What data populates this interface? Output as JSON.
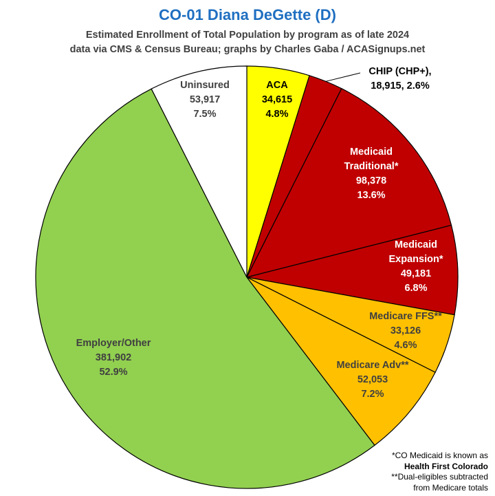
{
  "title": "CO-01 Diana DeGette (D)",
  "subtitle_line1": "Estimated Enrollment of Total Population by program as of late 2024",
  "subtitle_line2": "data via CMS & Census Bureau; graphs by Charles Gaba / ACASignups.net",
  "footnotes": {
    "line1": "*CO Medicaid is known as",
    "line2": "Health First Colorado",
    "line3": "**Dual-eligibles subtracted",
    "line4": "from Medicare totals"
  },
  "chart_data": {
    "type": "pie",
    "title": "CO-01 Diana DeGette (D)",
    "start": "12 o'clock, clockwise",
    "slices": [
      {
        "name": "ACA",
        "lines": [
          "ACA",
          "34,615",
          "4.8%"
        ],
        "value": 34615,
        "percent": 4.8,
        "color": "#ffff00",
        "text_color": "#000000"
      },
      {
        "name": "CHIP (CHP+)",
        "lines": [
          "CHIP (CHP+),",
          "18,915, 2.6%"
        ],
        "value": 18915,
        "percent": 2.6,
        "color": "#c00000",
        "text_color": "#000000",
        "outside_label": true
      },
      {
        "name": "Medicaid Traditional*",
        "lines": [
          "Medicaid",
          "Traditional*",
          "98,378",
          "13.6%"
        ],
        "value": 98378,
        "percent": 13.6,
        "color": "#c00000",
        "text_color": "#ffffff"
      },
      {
        "name": "Medicaid Expansion*",
        "lines": [
          "Medicaid",
          "Expansion*",
          "49,181",
          "6.8%"
        ],
        "value": 49181,
        "percent": 6.8,
        "color": "#c00000",
        "text_color": "#ffffff"
      },
      {
        "name": "Medicare FFS**",
        "lines": [
          "Medicare FFS**",
          "33,126",
          "4.6%"
        ],
        "value": 33126,
        "percent": 4.6,
        "color": "#ffc000",
        "text_color": "#404040"
      },
      {
        "name": "Medicare Adv**",
        "lines": [
          "Medicare Adv**",
          "52,053",
          "7.2%"
        ],
        "value": 52053,
        "percent": 7.2,
        "color": "#ffc000",
        "text_color": "#404040"
      },
      {
        "name": "Employer/Other",
        "lines": [
          "Employer/Other",
          "381,902",
          "52.9%"
        ],
        "value": 381902,
        "percent": 52.9,
        "color": "#92d050",
        "text_color": "#404040"
      },
      {
        "name": "Uninsured",
        "lines": [
          "Uninsured",
          "53,917",
          "7.5%"
        ],
        "value": 53917,
        "percent": 7.5,
        "color": "#ffffff",
        "text_color": "#404040"
      }
    ]
  }
}
